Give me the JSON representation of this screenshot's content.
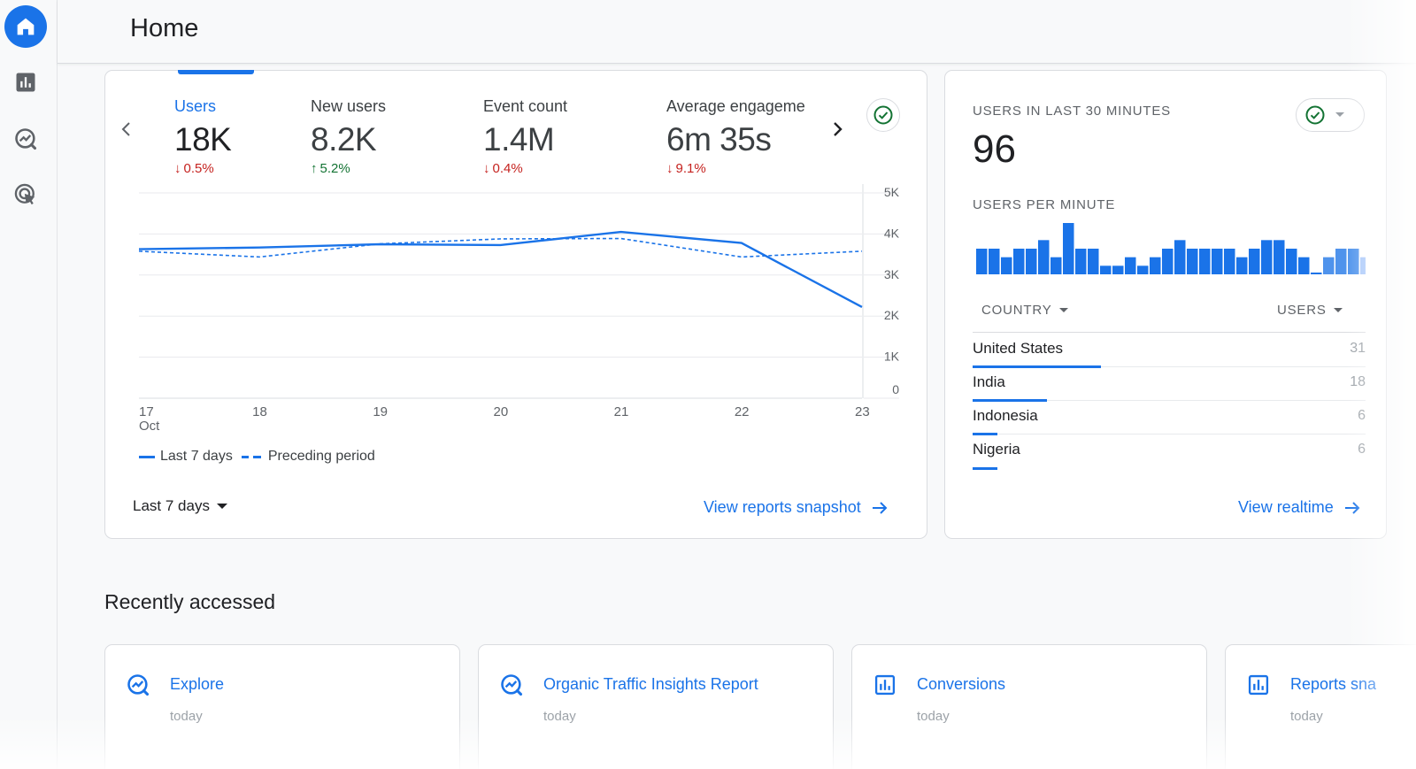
{
  "header": {
    "title": "Home"
  },
  "rail": {
    "items": [
      {
        "icon": "home-icon",
        "active": true
      },
      {
        "icon": "reports-icon",
        "active": false
      },
      {
        "icon": "explore-icon",
        "active": false
      },
      {
        "icon": "advertising-icon",
        "active": false
      }
    ]
  },
  "overview": {
    "metrics": [
      {
        "label": "Users",
        "value": "18K",
        "change": "0.5%",
        "direction": "down"
      },
      {
        "label": "New users",
        "value": "8.2K",
        "change": "5.2%",
        "direction": "up"
      },
      {
        "label": "Event count",
        "value": "1.4M",
        "change": "0.4%",
        "direction": "down"
      },
      {
        "label": "Average engageme",
        "value": "6m 35s",
        "change": "9.1%",
        "direction": "down"
      }
    ],
    "legend": {
      "current": "Last 7 days",
      "previous": "Preceding period"
    },
    "range_select": "Last 7 days",
    "snapshot_link": "View reports snapshot"
  },
  "chart_data": {
    "type": "line",
    "x": [
      "17",
      "18",
      "19",
      "20",
      "21",
      "22",
      "23"
    ],
    "x_sublabel": "Oct",
    "y_ticks": [
      "0",
      "1K",
      "2K",
      "3K",
      "4K",
      "5K"
    ],
    "ylim": [
      0,
      5000
    ],
    "grid": true,
    "legend_position": "bottom-left",
    "series": [
      {
        "name": "Last 7 days",
        "style": "solid",
        "values": [
          3630,
          3670,
          3750,
          3730,
          4050,
          3780,
          2220
        ]
      },
      {
        "name": "Preceding period",
        "style": "dashed",
        "values": [
          3580,
          3440,
          3760,
          3880,
          3890,
          3440,
          3580
        ]
      }
    ],
    "colors": {
      "line": "#1a73e8",
      "grid": "#e8eaed"
    }
  },
  "realtime": {
    "caption": "USERS IN LAST 30 MINUTES",
    "value": "96",
    "per_minute_caption": "USERS PER MINUTE",
    "per_minute_bars": [
      3,
      3,
      2,
      3,
      3,
      4,
      2,
      6,
      3,
      3,
      1,
      1,
      2,
      1,
      2,
      3,
      4,
      3,
      3,
      3,
      3,
      2,
      3,
      4,
      4,
      3,
      2,
      0,
      2,
      3,
      3,
      2
    ],
    "per_minute_max": 6,
    "columns": {
      "country": "COUNTRY",
      "users": "USERS"
    },
    "rows": [
      {
        "country": "United States",
        "users": "31",
        "share": 0.326
      },
      {
        "country": "India",
        "users": "18",
        "share": 0.19
      },
      {
        "country": "Indonesia",
        "users": "6",
        "share": 0.063
      },
      {
        "country": "Nigeria",
        "users": "6",
        "share": 0.063
      }
    ],
    "link": "View realtime"
  },
  "recent": {
    "title": "Recently accessed",
    "items": [
      {
        "title": "Explore",
        "time": "today",
        "icon": "explore-icon"
      },
      {
        "title": "Organic Traffic Insights Report",
        "time": "today",
        "icon": "explore-icon"
      },
      {
        "title": "Conversions",
        "time": "today",
        "icon": "reports-icon"
      },
      {
        "title": "Reports sna",
        "time": "today",
        "icon": "reports-icon"
      }
    ]
  },
  "colors": {
    "accent": "#1a73e8",
    "down": "#c5221f",
    "up": "#137333"
  }
}
